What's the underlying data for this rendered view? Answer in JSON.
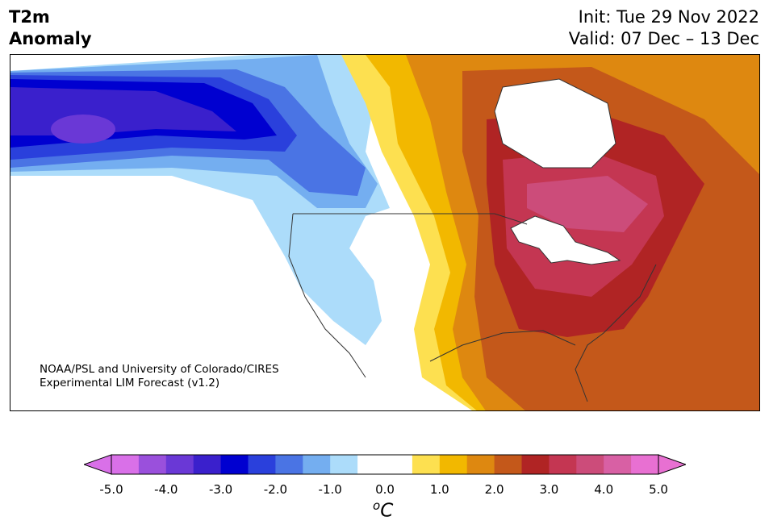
{
  "title": {
    "line1": "T2m",
    "line2": "Anomaly"
  },
  "init": "Init: Tue 29 Nov 2022",
  "valid": "Valid: 07 Dec – 13 Dec",
  "credit": {
    "line1": "NOAA/PSL and University of Colorado/CIRES",
    "line2": "Experimental LIM Forecast (v1.2)"
  },
  "colorbar": {
    "ticks": [
      "-5.0",
      "-4.0",
      "-3.0",
      "-2.0",
      "-1.0",
      "0.0",
      "1.0",
      "2.0",
      "3.0",
      "4.0",
      "5.0"
    ],
    "unit_base": "C",
    "unit_sup": "o",
    "colors": [
      "#d970e8",
      "#9a50dc",
      "#6a38d6",
      "#3a20cc",
      "#0000d0",
      "#2a40dc",
      "#4a74e4",
      "#74aef0",
      "#acdcfa",
      "#ffffff",
      "#ffffff",
      "#fde050",
      "#f2b800",
      "#de8810",
      "#c4581a",
      "#b02424",
      "#c43652",
      "#cc4c7a",
      "#d860a4",
      "#e870d2"
    ],
    "extend_low": "#d970e8",
    "extend_high": "#e870d2"
  },
  "palette": {
    "cold5": "#6a38d6",
    "cold4": "#3a20cc",
    "cold3": "#0000d0",
    "cold2": "#2a40dc",
    "cold15": "#4a74e4",
    "cold1": "#74aef0",
    "cold05": "#acdcfa",
    "warm05": "#fde050",
    "warm1": "#f2b800",
    "warm15": "#de8810",
    "warm2": "#c4581a",
    "warm25": "#b02424",
    "warm3": "#c43652",
    "warm35": "#cc4c7a"
  }
}
